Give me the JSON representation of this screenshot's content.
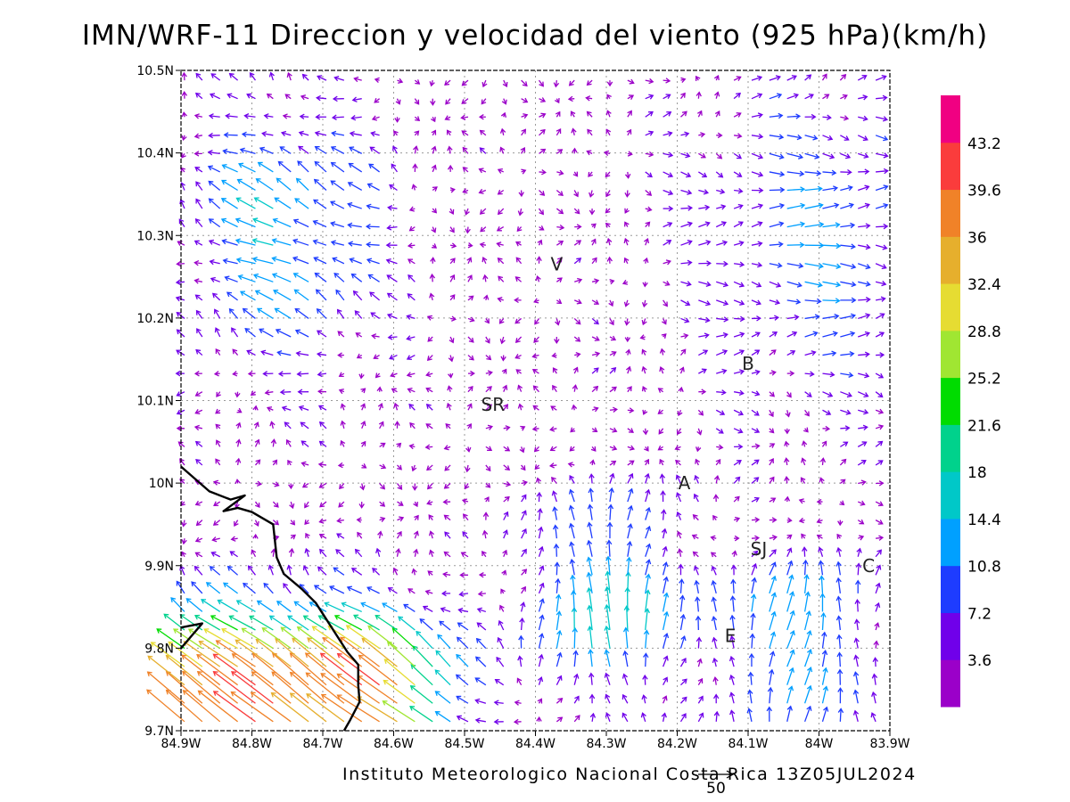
{
  "title": "IMN/WRF-11 Direccion y velocidad del viento (925 hPa)(km/h)",
  "footer": "Instituto Meteorologico Nacional Costa Rica 13Z05JUL2024",
  "map": {
    "lon_range": [
      -84.9,
      -83.9
    ],
    "lat_range": [
      9.7,
      10.5
    ],
    "x_ticks": [
      "84.9W",
      "84.8W",
      "84.7W",
      "84.6W",
      "84.5W",
      "84.4W",
      "84.3W",
      "84.2W",
      "84.1W",
      "84W",
      "83.9W"
    ],
    "y_ticks": [
      "9.7N",
      "9.8N",
      "9.9N",
      "10N",
      "10.1N",
      "10.2N",
      "10.3N",
      "10.4N",
      "10.5N"
    ],
    "grid": true,
    "vector_grid": {
      "lon_step": 0.025,
      "lat_step": 0.0222
    },
    "places": [
      {
        "label": "V",
        "lon": -84.37,
        "lat": 10.265
      },
      {
        "label": "B",
        "lon": -84.1,
        "lat": 10.145
      },
      {
        "label": "SR",
        "lon": -84.46,
        "lat": 10.095
      },
      {
        "label": "A",
        "lon": -84.19,
        "lat": 10.0
      },
      {
        "label": "SJ",
        "lon": -84.085,
        "lat": 9.92
      },
      {
        "label": "C",
        "lon": -83.93,
        "lat": 9.9
      },
      {
        "label": "E",
        "lon": -84.125,
        "lat": 9.815
      }
    ],
    "coastline": [
      [
        -84.9,
        10.02
      ],
      [
        -84.86,
        9.99
      ],
      [
        -84.83,
        9.98
      ],
      [
        -84.81,
        9.985
      ],
      [
        -84.84,
        9.966
      ],
      [
        -84.82,
        9.97
      ],
      [
        -84.8,
        9.965
      ],
      [
        -84.77,
        9.95
      ],
      [
        -84.765,
        9.91
      ],
      [
        -84.755,
        9.89
      ],
      [
        -84.73,
        9.872
      ],
      [
        -84.71,
        9.855
      ],
      [
        -84.695,
        9.835
      ],
      [
        -84.68,
        9.815
      ],
      [
        -84.665,
        9.795
      ],
      [
        -84.65,
        9.78
      ],
      [
        -84.65,
        9.755
      ],
      [
        -84.648,
        9.735
      ],
      [
        -84.662,
        9.712
      ],
      [
        -84.67,
        9.7
      ]
    ],
    "coastline_south": [
      [
        -84.9,
        9.825
      ],
      [
        -84.87,
        9.83
      ],
      [
        -84.89,
        9.81
      ],
      [
        -84.9,
        9.8
      ]
    ],
    "reference_vector": {
      "value": "50",
      "unit": "km/h"
    }
  },
  "colorbar": {
    "labels": [
      "3.6",
      "7.2",
      "10.8",
      "14.4",
      "18",
      "21.6",
      "25.2",
      "28.8",
      "32.4",
      "36",
      "39.6",
      "43.2"
    ],
    "colors": [
      "#9b00c9",
      "#7000ea",
      "#1e3cff",
      "#00a0ff",
      "#00c8c8",
      "#00d28c",
      "#00dc00",
      "#a0e632",
      "#e6dc32",
      "#e6af2d",
      "#f08228",
      "#fa3c3c",
      "#f00082"
    ]
  },
  "colors": {
    "coast": "#000000",
    "grid": "#9a9a9a",
    "frame": "#000000"
  }
}
